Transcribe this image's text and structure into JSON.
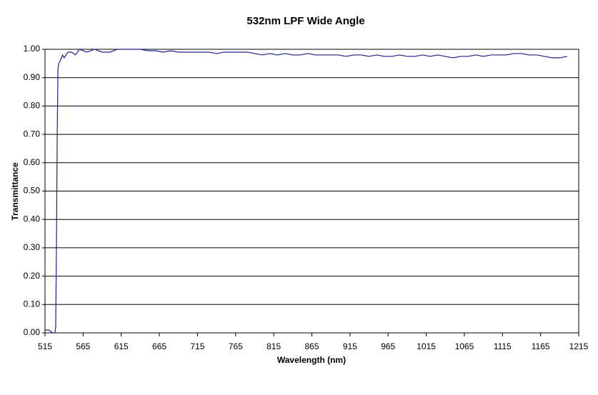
{
  "chart_data": {
    "type": "line",
    "title": "532nm LPF Wide Angle",
    "x_label": "Wavelength (nm)",
    "y_label": "Transmittance",
    "x": [
      515,
      520,
      525,
      528,
      529,
      530,
      531,
      532,
      533,
      535,
      538,
      540,
      545,
      550,
      555,
      560,
      570,
      580,
      590,
      600,
      610,
      620,
      630,
      640,
      650,
      660,
      670,
      680,
      690,
      700,
      710,
      720,
      730,
      740,
      750,
      760,
      770,
      780,
      790,
      800,
      810,
      820,
      830,
      840,
      850,
      860,
      870,
      880,
      890,
      900,
      910,
      920,
      930,
      940,
      950,
      960,
      970,
      980,
      990,
      1000,
      1010,
      1020,
      1030,
      1040,
      1050,
      1060,
      1070,
      1080,
      1090,
      1100,
      1110,
      1120,
      1130,
      1140,
      1150,
      1160,
      1170,
      1180,
      1190,
      1200
    ],
    "values": [
      0.01,
      0.01,
      0.0,
      0.0,
      0.02,
      0.3,
      0.7,
      0.93,
      0.95,
      0.96,
      0.98,
      0.97,
      0.99,
      0.99,
      0.98,
      1.0,
      0.99,
      1.0,
      0.99,
      0.99,
      1.0,
      1.0,
      1.0,
      1.0,
      0.995,
      0.995,
      0.99,
      0.995,
      0.99,
      0.99,
      0.99,
      0.99,
      0.99,
      0.985,
      0.99,
      0.99,
      0.99,
      0.99,
      0.985,
      0.98,
      0.985,
      0.98,
      0.985,
      0.98,
      0.98,
      0.985,
      0.98,
      0.98,
      0.98,
      0.98,
      0.975,
      0.98,
      0.98,
      0.975,
      0.98,
      0.975,
      0.975,
      0.98,
      0.975,
      0.975,
      0.98,
      0.975,
      0.98,
      0.975,
      0.97,
      0.975,
      0.975,
      0.98,
      0.975,
      0.98,
      0.98,
      0.98,
      0.985,
      0.985,
      0.98,
      0.98,
      0.975,
      0.97,
      0.97,
      0.975
    ],
    "color": "#1f1f8f",
    "xlim": [
      515,
      1215
    ],
    "xticks": [
      515,
      565,
      615,
      665,
      715,
      765,
      815,
      865,
      915,
      965,
      1015,
      1065,
      1115,
      1165,
      1215
    ],
    "ylim": [
      0,
      1
    ],
    "yticks": [
      {
        "value": 0,
        "label": "0.00"
      },
      {
        "value": 0.1,
        "label": "0.10"
      },
      {
        "value": 0.2,
        "label": "0.20"
      },
      {
        "value": 0.3,
        "label": "0.30"
      },
      {
        "value": 0.4,
        "label": "0.40"
      },
      {
        "value": 0.5,
        "label": "0.50"
      },
      {
        "value": 0.6,
        "label": "0.60"
      },
      {
        "value": 0.7,
        "label": "0.70"
      },
      {
        "value": 0.8,
        "label": "0.80"
      },
      {
        "value": 0.9,
        "label": "0.90"
      },
      {
        "value": 1,
        "label": "1.00"
      }
    ],
    "grid": true
  }
}
